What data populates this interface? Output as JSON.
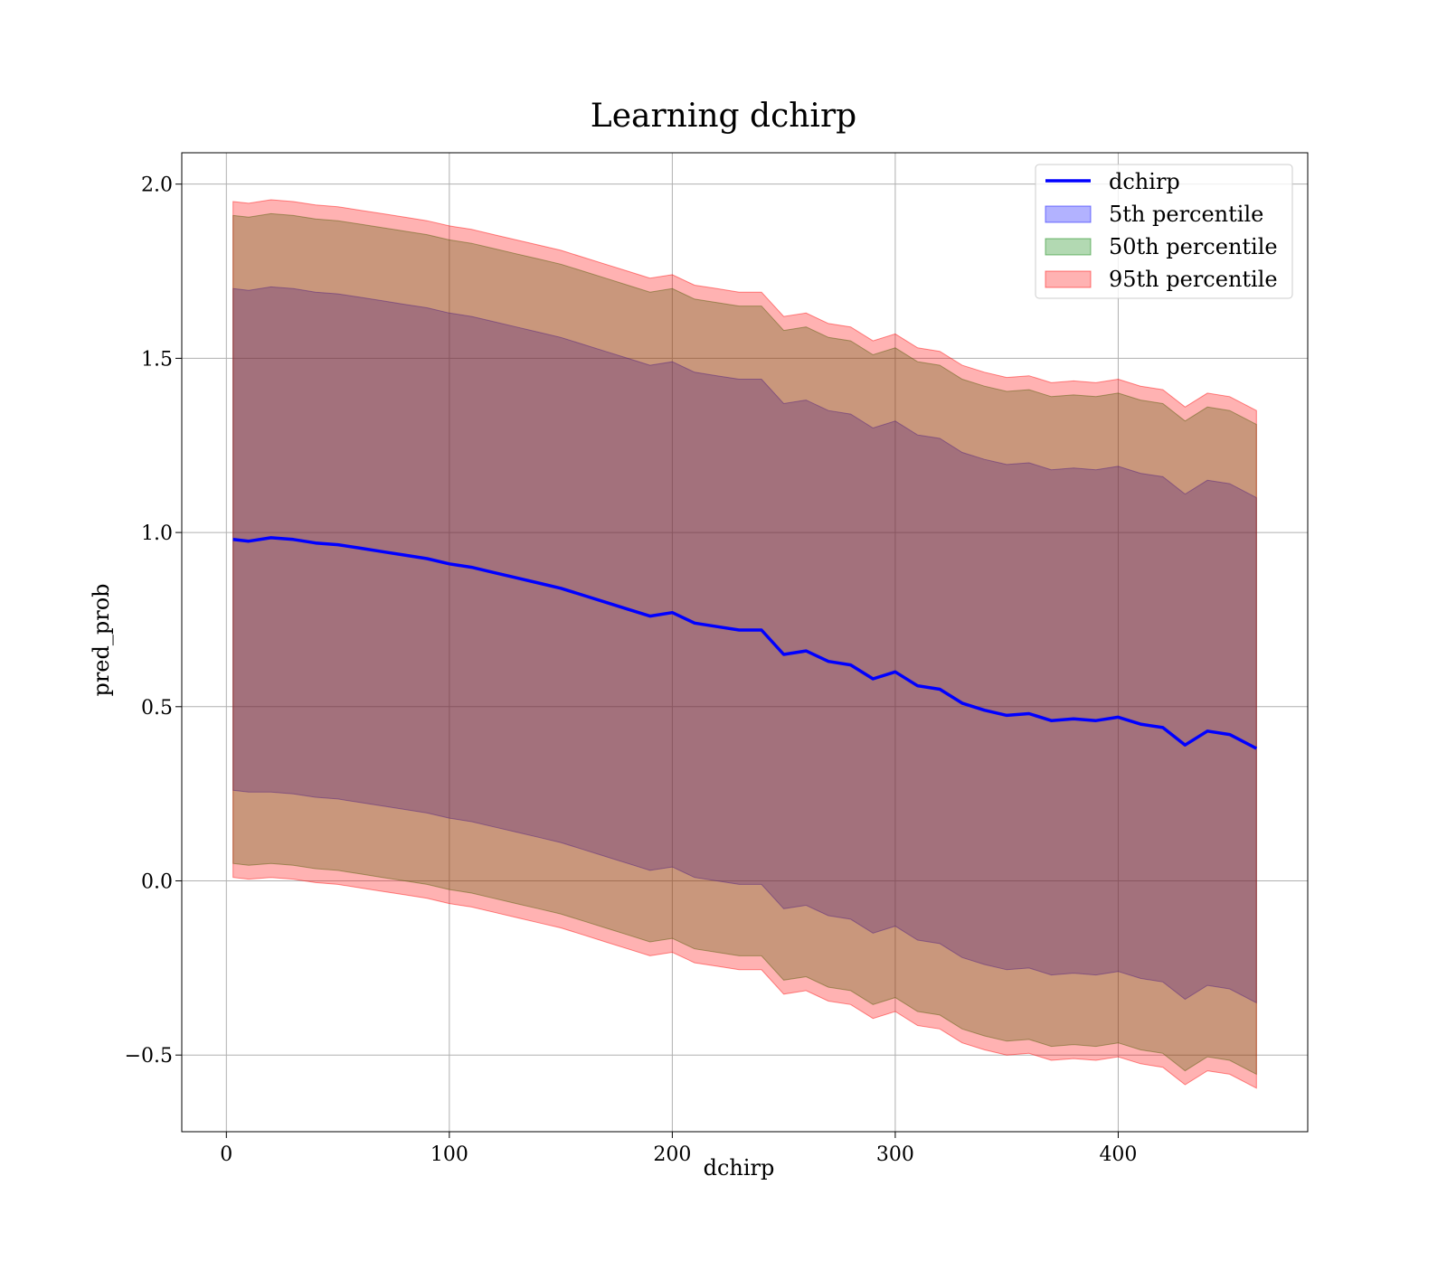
{
  "chart_data": {
    "type": "line",
    "title": "Learning dchirp",
    "xlabel": "dchirp",
    "ylabel": "pred_prob",
    "xlim": [
      -20,
      485
    ],
    "ylim": [
      -0.72,
      2.09
    ],
    "xticks": [
      0,
      100,
      200,
      300,
      400
    ],
    "xtick_labels": [
      "0",
      "100",
      "200",
      "300",
      "400"
    ],
    "yticks": [
      -0.5,
      0.0,
      0.5,
      1.0,
      1.5,
      2.0
    ],
    "ytick_labels": [
      "−0.5",
      "0.0",
      "0.5",
      "1.0",
      "1.5",
      "2.0"
    ],
    "grid": true,
    "legend_position": "top-right",
    "legend": [
      {
        "label": "dchirp",
        "kind": "line",
        "color": "#0000ff"
      },
      {
        "label": "5th percentile",
        "kind": "band",
        "color": "#0000ff"
      },
      {
        "label": "50th percentile",
        "kind": "band",
        "color": "#008000"
      },
      {
        "label": "95th percentile",
        "kind": "band",
        "color": "#ff0000"
      }
    ],
    "x": [
      3,
      10,
      20,
      30,
      40,
      50,
      60,
      70,
      80,
      90,
      100,
      110,
      120,
      130,
      140,
      150,
      160,
      170,
      180,
      190,
      200,
      210,
      220,
      230,
      240,
      250,
      260,
      270,
      280,
      290,
      300,
      310,
      320,
      330,
      340,
      350,
      360,
      370,
      380,
      390,
      400,
      410,
      420,
      430,
      440,
      450,
      462
    ],
    "series": [
      {
        "name": "dchirp",
        "color": "#0000ff",
        "values": [
          0.98,
          0.975,
          0.985,
          0.98,
          0.97,
          0.965,
          0.955,
          0.945,
          0.935,
          0.925,
          0.91,
          0.9,
          0.885,
          0.87,
          0.855,
          0.84,
          0.82,
          0.8,
          0.78,
          0.76,
          0.77,
          0.74,
          0.73,
          0.72,
          0.72,
          0.65,
          0.66,
          0.63,
          0.62,
          0.58,
          0.6,
          0.56,
          0.55,
          0.51,
          0.49,
          0.475,
          0.48,
          0.46,
          0.465,
          0.46,
          0.47,
          0.45,
          0.44,
          0.39,
          0.43,
          0.42,
          0.38
        ]
      },
      {
        "name": "5th percentile",
        "color": "#0000ff",
        "lower": [
          0.26,
          0.255,
          0.255,
          0.25,
          0.24,
          0.235,
          0.225,
          0.215,
          0.205,
          0.195,
          0.18,
          0.17,
          0.155,
          0.14,
          0.125,
          0.11,
          0.09,
          0.07,
          0.05,
          0.03,
          0.04,
          0.01,
          0.0,
          -0.01,
          -0.01,
          -0.08,
          -0.07,
          -0.1,
          -0.11,
          -0.15,
          -0.13,
          -0.17,
          -0.18,
          -0.22,
          -0.24,
          -0.255,
          -0.25,
          -0.27,
          -0.265,
          -0.27,
          -0.26,
          -0.28,
          -0.29,
          -0.34,
          -0.3,
          -0.31,
          -0.35
        ],
        "upper": [
          1.7,
          1.695,
          1.705,
          1.7,
          1.69,
          1.685,
          1.675,
          1.665,
          1.655,
          1.645,
          1.63,
          1.62,
          1.605,
          1.59,
          1.575,
          1.56,
          1.54,
          1.52,
          1.5,
          1.48,
          1.49,
          1.46,
          1.45,
          1.44,
          1.44,
          1.37,
          1.38,
          1.35,
          1.34,
          1.3,
          1.32,
          1.28,
          1.27,
          1.23,
          1.21,
          1.195,
          1.2,
          1.18,
          1.185,
          1.18,
          1.19,
          1.17,
          1.16,
          1.11,
          1.15,
          1.14,
          1.1
        ]
      },
      {
        "name": "50th percentile",
        "color": "#008000",
        "lower": [
          0.05,
          0.045,
          0.05,
          0.045,
          0.035,
          0.03,
          0.02,
          0.01,
          0.0,
          -0.01,
          -0.025,
          -0.035,
          -0.05,
          -0.065,
          -0.08,
          -0.095,
          -0.115,
          -0.135,
          -0.155,
          -0.175,
          -0.165,
          -0.195,
          -0.205,
          -0.215,
          -0.215,
          -0.285,
          -0.275,
          -0.305,
          -0.315,
          -0.355,
          -0.335,
          -0.375,
          -0.385,
          -0.425,
          -0.445,
          -0.46,
          -0.455,
          -0.475,
          -0.47,
          -0.475,
          -0.465,
          -0.485,
          -0.495,
          -0.545,
          -0.505,
          -0.515,
          -0.555
        ],
        "upper": [
          1.91,
          1.905,
          1.915,
          1.91,
          1.9,
          1.895,
          1.885,
          1.875,
          1.865,
          1.855,
          1.84,
          1.83,
          1.815,
          1.8,
          1.785,
          1.77,
          1.75,
          1.73,
          1.71,
          1.69,
          1.7,
          1.67,
          1.66,
          1.65,
          1.65,
          1.58,
          1.59,
          1.56,
          1.55,
          1.51,
          1.53,
          1.49,
          1.48,
          1.44,
          1.42,
          1.405,
          1.41,
          1.39,
          1.395,
          1.39,
          1.4,
          1.38,
          1.37,
          1.32,
          1.36,
          1.35,
          1.31
        ]
      },
      {
        "name": "95th percentile",
        "color": "#ff0000",
        "lower": [
          0.01,
          0.005,
          0.01,
          0.005,
          -0.005,
          -0.01,
          -0.02,
          -0.03,
          -0.04,
          -0.05,
          -0.065,
          -0.075,
          -0.09,
          -0.105,
          -0.12,
          -0.135,
          -0.155,
          -0.175,
          -0.195,
          -0.215,
          -0.205,
          -0.235,
          -0.245,
          -0.255,
          -0.255,
          -0.325,
          -0.315,
          -0.345,
          -0.355,
          -0.395,
          -0.375,
          -0.415,
          -0.425,
          -0.465,
          -0.485,
          -0.5,
          -0.495,
          -0.515,
          -0.51,
          -0.515,
          -0.505,
          -0.525,
          -0.535,
          -0.585,
          -0.545,
          -0.555,
          -0.595
        ],
        "upper": [
          1.95,
          1.945,
          1.955,
          1.95,
          1.94,
          1.935,
          1.925,
          1.915,
          1.905,
          1.895,
          1.88,
          1.87,
          1.855,
          1.84,
          1.825,
          1.81,
          1.79,
          1.77,
          1.75,
          1.73,
          1.74,
          1.71,
          1.7,
          1.69,
          1.69,
          1.62,
          1.63,
          1.6,
          1.59,
          1.55,
          1.57,
          1.53,
          1.52,
          1.48,
          1.46,
          1.445,
          1.45,
          1.43,
          1.435,
          1.43,
          1.44,
          1.42,
          1.41,
          1.36,
          1.4,
          1.39,
          1.35
        ]
      }
    ]
  }
}
